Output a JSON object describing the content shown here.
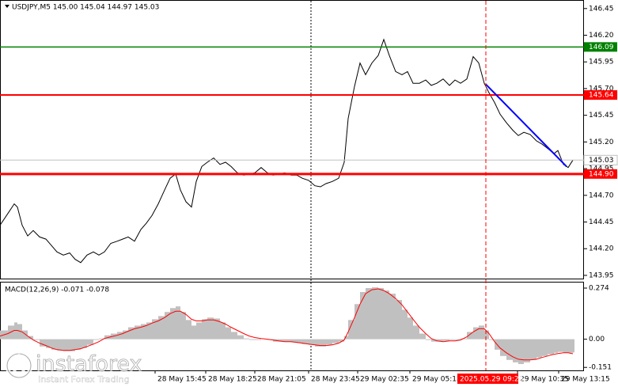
{
  "chart_data": [
    {
      "type": "line",
      "title": "USDJPY,M5  145.00 145.04 144.97 145.03",
      "color": "#000000",
      "x": [
        0,
        5,
        9,
        11,
        14,
        17.5,
        21,
        25,
        29,
        32.5,
        36,
        40,
        44,
        47.5,
        51,
        55,
        59,
        62.5,
        66,
        70,
        74,
        77.5,
        81,
        85,
        89,
        92.5,
        96,
        100,
        104,
        107.5,
        111,
        114,
        117.5,
        121,
        124,
        127.5,
        131,
        135,
        139,
        142.5,
        146,
        150,
        154,
        157.5,
        161,
        165,
        169,
        172.5,
        176,
        180,
        184,
        187.5,
        191,
        195,
        199,
        202.5,
        206,
        210,
        214,
        217.5,
        220,
        224,
        227.5,
        231,
        235,
        239,
        242.5,
        246,
        250,
        254,
        257.5,
        261,
        265,
        269,
        272.5,
        276,
        280,
        284,
        287.5,
        291,
        295,
        299,
        302.5,
        306,
        309,
        312.5,
        316,
        320,
        324,
        327.5,
        331,
        335,
        339,
        342.5,
        346,
        350,
        352.5,
        356,
        359,
        362
      ],
      "values": [
        144.42,
        144.53,
        144.62,
        144.59,
        144.42,
        144.32,
        144.37,
        144.31,
        144.29,
        144.23,
        144.17,
        144.14,
        144.16,
        144.1,
        144.07,
        144.14,
        144.17,
        144.14,
        144.17,
        144.25,
        144.27,
        144.29,
        144.31,
        144.27,
        144.38,
        144.44,
        144.51,
        144.62,
        144.75,
        144.86,
        144.9,
        144.75,
        144.64,
        144.59,
        144.83,
        144.97,
        145.01,
        145.05,
        144.99,
        145.01,
        144.97,
        144.91,
        144.89,
        144.9,
        144.91,
        144.96,
        144.91,
        144.89,
        144.9,
        144.91,
        144.89,
        144.89,
        144.86,
        144.84,
        144.79,
        144.78,
        144.81,
        144.83,
        144.86,
        145.01,
        145.42,
        145.72,
        145.94,
        145.83,
        145.94,
        146.01,
        146.16,
        146.01,
        145.86,
        145.83,
        145.86,
        145.75,
        145.75,
        145.78,
        145.73,
        145.75,
        145.79,
        145.73,
        145.78,
        145.75,
        145.79,
        146.0,
        145.94,
        145.75,
        145.66,
        145.57,
        145.46,
        145.38,
        145.31,
        145.26,
        145.29,
        145.27,
        145.21,
        145.18,
        145.14,
        145.09,
        145.12,
        144.99,
        144.96,
        145.03
      ],
      "xlim": [
        0,
        369
      ],
      "ylim": [
        143.92,
        146.53
      ],
      "yticks": [
        {
          "value": 143.95,
          "label": "143.95"
        },
        {
          "value": 144.2,
          "label": "144.20"
        },
        144.45,
        {
          "value": 144.7,
          "label": "144.70"
        },
        144.95,
        {
          "value": 145.2,
          "label": "145.20"
        },
        145.45,
        {
          "value": 145.7,
          "label": "145.70"
        },
        145.95,
        {
          "value": 146.2,
          "label": "146.20"
        },
        146.45
      ],
      "levels": [
        {
          "value": 146.09,
          "color": "#008000",
          "width": 1.5
        },
        {
          "value": 145.64,
          "color": "#ff0000",
          "width": 2
        },
        {
          "value": 144.9,
          "label": "144.90",
          "color": "#ff0000",
          "width": 3
        }
      ],
      "bid": {
        "value": 145.03,
        "color": "#c0c0c0"
      },
      "trendline": {
        "x": [
          307,
          358
        ],
        "values": [
          145.74,
          144.97
        ],
        "color": "#0000ff"
      }
    },
    {
      "type": "bar",
      "title": "MACD(12,26,9) -0.071 -0.078",
      "x": [
        0,
        5,
        9,
        11,
        14,
        17.5,
        21,
        25,
        29,
        32.5,
        36,
        40,
        44,
        47.5,
        51,
        55,
        59,
        62.5,
        66,
        70,
        74,
        77.5,
        81,
        85,
        89,
        92.5,
        96,
        100,
        104,
        107.5,
        111,
        114,
        117.5,
        121,
        124,
        127.5,
        131,
        135,
        139,
        142.5,
        146,
        150,
        154,
        157.5,
        161,
        165,
        169,
        172.5,
        176,
        180,
        184,
        187.5,
        191,
        195,
        199,
        202.5,
        206,
        210,
        214,
        217.5,
        220,
        224,
        227.5,
        231,
        235,
        239,
        242.5,
        246,
        250,
        254,
        257.5,
        261,
        265,
        269,
        272.5,
        276,
        280,
        284,
        287.5,
        291,
        295,
        299,
        302.5,
        306,
        309,
        312.5,
        316,
        320,
        324,
        327.5,
        331,
        335,
        339,
        342.5,
        346,
        350,
        352.5,
        356,
        359,
        362
      ],
      "series": [
        {
          "type": "bar",
          "color": "#c0c0c0",
          "values": [
            0.047,
            0.073,
            0.09,
            0.081,
            0.047,
            0.017,
            -0.004,
            -0.039,
            -0.047,
            -0.056,
            -0.06,
            -0.064,
            -0.064,
            -0.056,
            -0.047,
            -0.03,
            -0.004,
            0.004,
            0.021,
            0.03,
            0.039,
            0.047,
            0.064,
            0.073,
            0.081,
            0.09,
            0.107,
            0.124,
            0.146,
            0.167,
            0.176,
            0.146,
            0.103,
            0.073,
            0.09,
            0.107,
            0.116,
            0.111,
            0.09,
            0.064,
            0.039,
            0.021,
            0.004,
            -0.004,
            -0.004,
            0,
            -0.004,
            -0.013,
            -0.013,
            -0.013,
            -0.017,
            -0.021,
            -0.026,
            -0.03,
            -0.039,
            -0.039,
            -0.03,
            -0.021,
            -0.013,
            0.017,
            0.103,
            0.188,
            0.253,
            0.274,
            0.278,
            0.274,
            0.261,
            0.244,
            0.21,
            0.158,
            0.116,
            0.073,
            0.03,
            -0.004,
            -0.013,
            -0.013,
            -0.009,
            -0.004,
            -0.004,
            0.004,
            0.039,
            0.064,
            0.073,
            0.047,
            -0.004,
            -0.056,
            -0.09,
            -0.111,
            -0.124,
            -0.133,
            -0.124,
            -0.111,
            -0.098,
            -0.09,
            -0.081,
            -0.073,
            -0.068,
            -0.073,
            -0.073,
            -0.071
          ]
        },
        {
          "type": "line",
          "color": "#ff0000",
          "values": [
            0.017,
            0.03,
            0.047,
            0.047,
            0.039,
            0.017,
            -0.004,
            -0.021,
            -0.034,
            -0.047,
            -0.056,
            -0.06,
            -0.06,
            -0.056,
            -0.051,
            -0.039,
            -0.026,
            -0.013,
            0.004,
            0.013,
            0.021,
            0.03,
            0.043,
            0.056,
            0.064,
            0.073,
            0.086,
            0.098,
            0.116,
            0.137,
            0.15,
            0.15,
            0.133,
            0.107,
            0.098,
            0.098,
            0.103,
            0.103,
            0.094,
            0.081,
            0.064,
            0.047,
            0.03,
            0.017,
            0.009,
            0.004,
            0,
            -0.004,
            -0.009,
            -0.013,
            -0.013,
            -0.017,
            -0.021,
            -0.026,
            -0.03,
            -0.034,
            -0.034,
            -0.03,
            -0.021,
            -0.004,
            0.039,
            0.116,
            0.188,
            0.244,
            0.265,
            0.27,
            0.261,
            0.244,
            0.218,
            0.184,
            0.146,
            0.107,
            0.064,
            0.03,
            0.004,
            -0.009,
            -0.013,
            -0.009,
            -0.009,
            -0.004,
            0.013,
            0.039,
            0.056,
            0.056,
            0.03,
            -0.013,
            -0.047,
            -0.073,
            -0.094,
            -0.107,
            -0.111,
            -0.111,
            -0.107,
            -0.098,
            -0.09,
            -0.081,
            -0.077,
            -0.073,
            -0.073,
            -0.078
          ]
        }
      ],
      "xlim": [
        0,
        369
      ],
      "ylim": [
        -0.167,
        0.308
      ],
      "yticks": [
        0.274,
        {
          "value": 0,
          "label": "0.00"
        },
        -0.151
      ],
      "xticks": [
        {
          "value": 98,
          "label": "28 May 15:45"
        },
        {
          "value": 130,
          "label": "28 May 18:25"
        },
        {
          "value": 161,
          "label": "28 May 21:05"
        },
        {
          "value": 195,
          "label": "28 May 23:45"
        },
        {
          "value": 226,
          "label": "29 May 02:35"
        },
        {
          "value": 259,
          "label": "29 May 05:15"
        },
        {
          "value": 327,
          "label": "29 May 10:35"
        },
        {
          "value": 353,
          "label": "29 May 13:15"
        }
      ],
      "crosshair": {
        "value": 307,
        "label": "2025.05.29 09:25",
        "color": "#ff0000"
      }
    }
  ],
  "watermark": {
    "brand": "instaforex",
    "tagline": "Instant Forex Trading"
  }
}
